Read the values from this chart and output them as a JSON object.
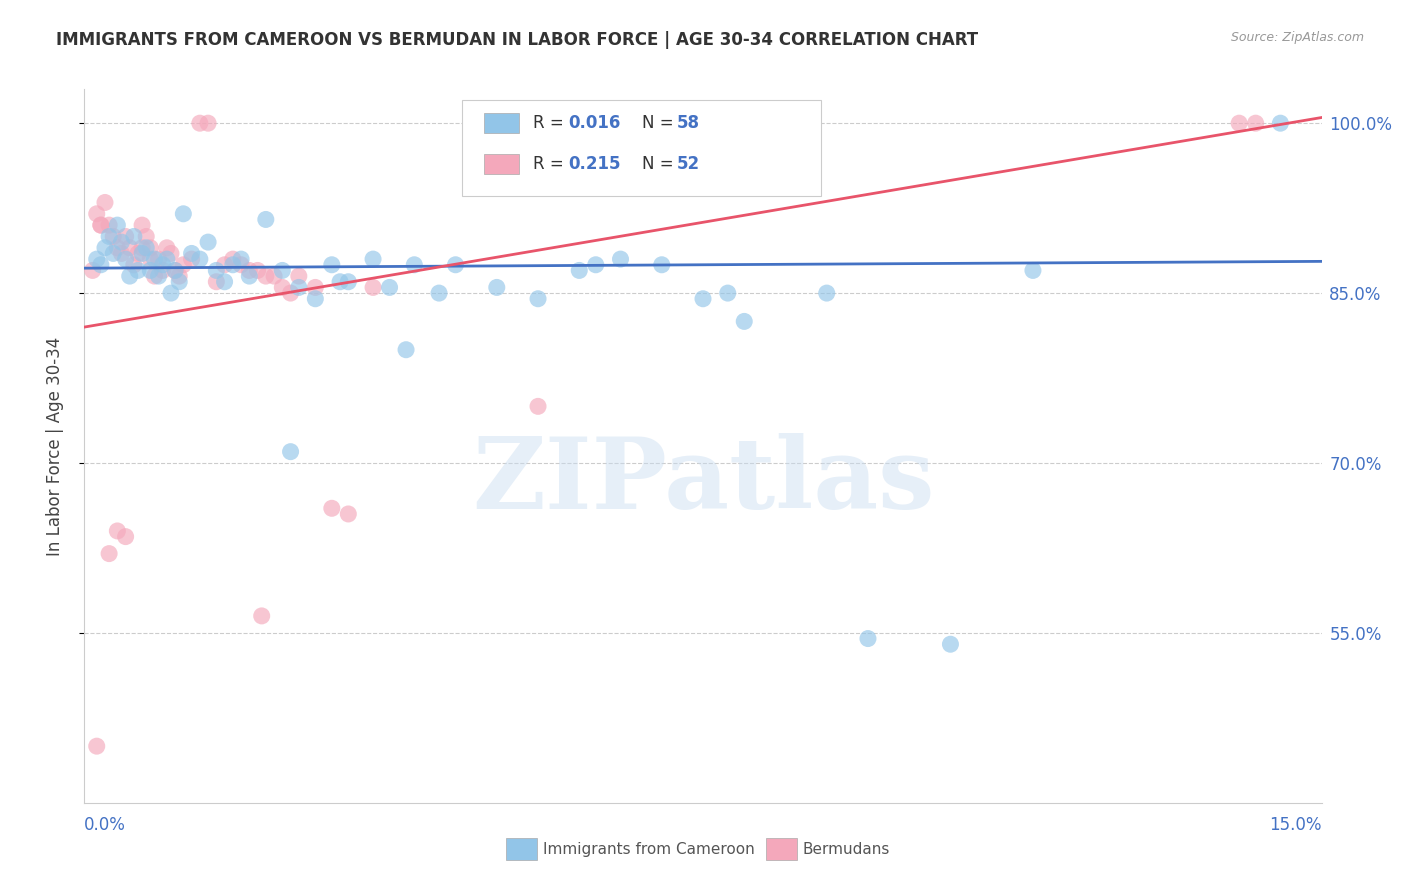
{
  "title": "IMMIGRANTS FROM CAMEROON VS BERMUDAN IN LABOR FORCE | AGE 30-34 CORRELATION CHART",
  "source_text": "Source: ZipAtlas.com",
  "ylabel": "In Labor Force | Age 30-34",
  "watermark": "ZIPatlas",
  "xlim": [
    0.0,
    15.0
  ],
  "ylim": [
    40.0,
    103.0
  ],
  "yticks": [
    55.0,
    70.0,
    85.0,
    100.0
  ],
  "ytick_labels": [
    "55.0%",
    "70.0%",
    "85.0%",
    "100.0%"
  ],
  "xticks": [
    0.0,
    3.0,
    6.0,
    9.0,
    12.0,
    15.0
  ],
  "legend_R_blue": "R = 0.016",
  "legend_N_blue": "N = 58",
  "legend_R_pink": "R = 0.215",
  "legend_N_pink": "N = 52",
  "blue_color": "#92c5e8",
  "pink_color": "#f4a8bb",
  "blue_line_color": "#4472c4",
  "pink_line_color": "#e8546a",
  "legend_label_blue": "Immigrants from Cameroon",
  "legend_label_pink": "Bermudans",
  "blue_scatter_x": [
    0.15,
    0.2,
    0.25,
    0.3,
    0.35,
    0.4,
    0.45,
    0.5,
    0.55,
    0.6,
    0.65,
    0.7,
    0.75,
    0.8,
    0.85,
    0.9,
    0.95,
    1.0,
    1.05,
    1.1,
    1.15,
    1.2,
    1.3,
    1.4,
    1.5,
    1.6,
    1.7,
    1.8,
    1.9,
    2.0,
    2.2,
    2.4,
    2.6,
    2.8,
    3.0,
    3.2,
    3.5,
    3.7,
    4.0,
    4.3,
    4.5,
    5.0,
    5.5,
    6.0,
    6.5,
    7.0,
    7.5,
    8.0,
    9.0,
    9.5,
    10.5,
    11.5,
    14.5,
    6.2,
    7.8,
    3.1,
    3.9,
    2.5
  ],
  "blue_scatter_y": [
    88.0,
    87.5,
    89.0,
    90.0,
    88.5,
    91.0,
    89.5,
    88.0,
    86.5,
    90.0,
    87.0,
    88.5,
    89.0,
    87.0,
    88.0,
    86.5,
    87.5,
    88.0,
    85.0,
    87.0,
    86.0,
    92.0,
    88.5,
    88.0,
    89.5,
    87.0,
    86.0,
    87.5,
    88.0,
    86.5,
    91.5,
    87.0,
    85.5,
    84.5,
    87.5,
    86.0,
    88.0,
    85.5,
    87.5,
    85.0,
    87.5,
    85.5,
    84.5,
    87.0,
    88.0,
    87.5,
    84.5,
    82.5,
    85.0,
    54.5,
    54.0,
    87.0,
    100.0,
    87.5,
    85.0,
    86.0,
    80.0,
    71.0
  ],
  "pink_scatter_x": [
    0.1,
    0.15,
    0.2,
    0.25,
    0.3,
    0.35,
    0.4,
    0.45,
    0.5,
    0.55,
    0.6,
    0.65,
    0.7,
    0.75,
    0.8,
    0.85,
    0.9,
    0.95,
    1.0,
    1.05,
    1.1,
    1.15,
    1.2,
    1.3,
    1.4,
    1.5,
    1.6,
    1.7,
    1.8,
    1.9,
    2.0,
    2.1,
    2.2,
    2.3,
    2.4,
    2.5,
    2.6,
    2.8,
    3.0,
    3.2,
    3.5,
    2.15,
    5.5,
    0.7,
    0.8,
    0.5,
    0.4,
    0.3,
    0.2,
    0.15,
    14.0,
    14.2
  ],
  "pink_scatter_y": [
    87.0,
    92.0,
    91.0,
    93.0,
    91.0,
    90.0,
    89.0,
    88.5,
    90.0,
    89.0,
    87.5,
    88.5,
    89.0,
    90.0,
    88.0,
    86.5,
    88.0,
    87.0,
    89.0,
    88.5,
    87.0,
    86.5,
    87.5,
    88.0,
    100.0,
    100.0,
    86.0,
    87.5,
    88.0,
    87.5,
    87.0,
    87.0,
    86.5,
    86.5,
    85.5,
    85.0,
    86.5,
    85.5,
    66.0,
    65.5,
    85.5,
    56.5,
    75.0,
    91.0,
    89.0,
    63.5,
    64.0,
    62.0,
    91.0,
    45.0,
    100.0,
    100.0
  ],
  "blue_trend_x": [
    0.0,
    15.0
  ],
  "blue_trend_y": [
    87.2,
    87.8
  ],
  "pink_trend_x": [
    0.0,
    15.0
  ],
  "pink_trend_y": [
    82.0,
    100.5
  ]
}
